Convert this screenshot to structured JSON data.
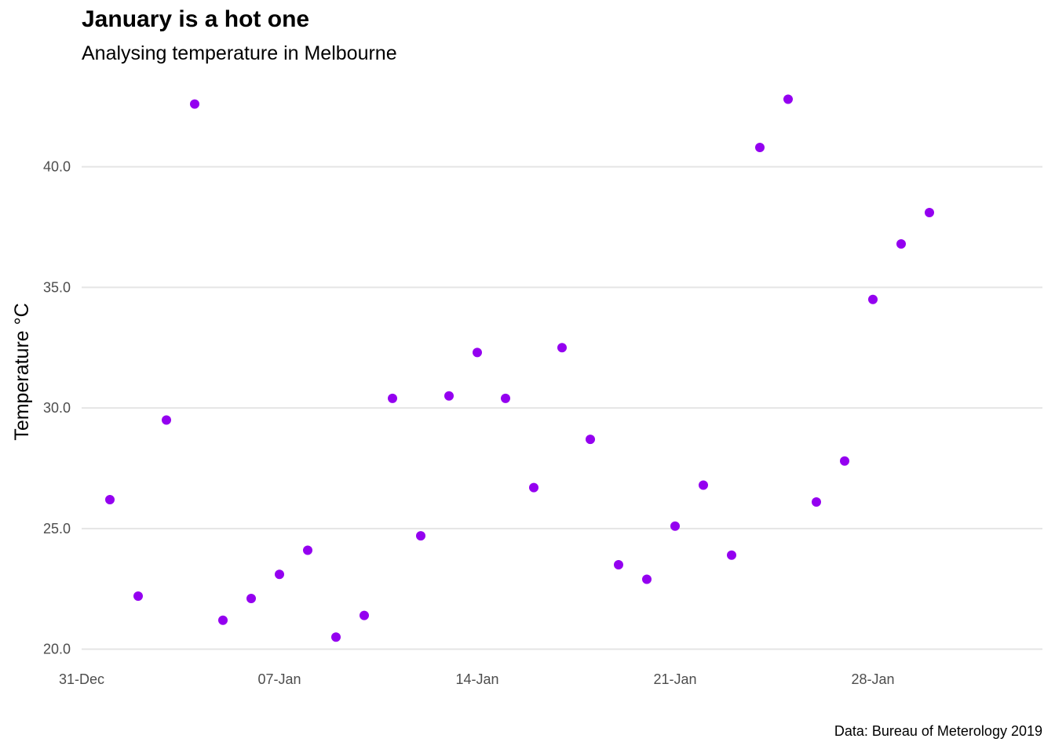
{
  "chart_data": {
    "type": "scatter",
    "title": "January is a hot one",
    "subtitle": "Analysing temperature in Melbourne",
    "caption": "Data: Bureau of Meterology 2019",
    "xlabel": "",
    "ylabel": "Temperature °C",
    "xlim": [
      "2018-12-31",
      "2019-02-03"
    ],
    "ylim": [
      19.5,
      43.5
    ],
    "grid": "horizontal major",
    "legend": "none",
    "point_color": "#9400f0",
    "x_ticks": [
      {
        "date": "2018-12-31",
        "label": "31-Dec"
      },
      {
        "date": "2019-01-07",
        "label": "07-Jan"
      },
      {
        "date": "2019-01-14",
        "label": "14-Jan"
      },
      {
        "date": "2019-01-21",
        "label": "21-Jan"
      },
      {
        "date": "2019-01-28",
        "label": "28-Jan"
      }
    ],
    "y_ticks": [
      {
        "value": 20,
        "label": "20.0"
      },
      {
        "value": 25,
        "label": "25.0"
      },
      {
        "value": 30,
        "label": "30.0"
      },
      {
        "value": 35,
        "label": "35.0"
      },
      {
        "value": 40,
        "label": "40.0"
      }
    ],
    "x": [
      "2019-01-01",
      "2019-01-02",
      "2019-01-03",
      "2019-01-04",
      "2019-01-05",
      "2019-01-06",
      "2019-01-07",
      "2019-01-08",
      "2019-01-09",
      "2019-01-10",
      "2019-01-11",
      "2019-01-12",
      "2019-01-13",
      "2019-01-14",
      "2019-01-15",
      "2019-01-16",
      "2019-01-17",
      "2019-01-18",
      "2019-01-19",
      "2019-01-20",
      "2019-01-21",
      "2019-01-22",
      "2019-01-23",
      "2019-01-24",
      "2019-01-25",
      "2019-01-26",
      "2019-01-27",
      "2019-01-28",
      "2019-01-29",
      "2019-01-30"
    ],
    "y": [
      26.2,
      22.2,
      29.5,
      42.6,
      21.2,
      22.1,
      23.1,
      24.1,
      20.5,
      21.4,
      30.4,
      24.7,
      30.5,
      32.3,
      30.4,
      26.7,
      32.5,
      28.7,
      23.5,
      22.9,
      25.1,
      26.8,
      23.9,
      40.8,
      42.8,
      26.1,
      27.8,
      34.5,
      36.8,
      38.1
    ]
  }
}
